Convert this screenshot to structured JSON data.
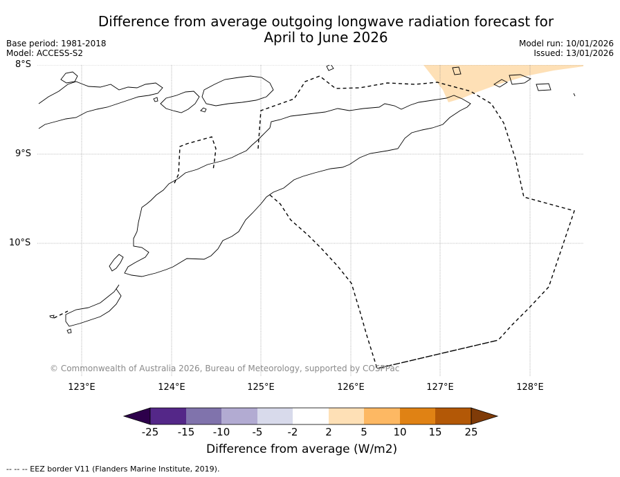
{
  "title": "Difference from average outgoing longwave radiation forecast for April to June 2026",
  "title_line1": "Difference from average outgoing longwave radiation forecast for",
  "title_line2": "April to June 2026",
  "base_period": "Base period: 1981-2018",
  "model": "Model: ACCESS-S2",
  "model_run": "Model run: 10/01/2026",
  "issued": "Issued: 13/01/2026",
  "map": {
    "lat_labels": [
      "8°S",
      "9°S",
      "10°S"
    ],
    "lon_labels": [
      "123°E",
      "124°E",
      "125°E",
      "126°E",
      "127°E",
      "128°E"
    ],
    "anomaly_region_category": "2 to 5",
    "anomaly_color": "#fee0b6"
  },
  "copyright": "© Commonwealth of Australia 2026, Bureau of Meteorology, supported by COSPPac",
  "colorbar": {
    "ticks": [
      "-25",
      "-15",
      "-10",
      "-5",
      "-2",
      "2",
      "5",
      "10",
      "15",
      "25"
    ],
    "colors": [
      "#2d004b",
      "#542788",
      "#8073ac",
      "#b2abd2",
      "#d8daeb",
      "#ffffff",
      "#fee0b6",
      "#fdb863",
      "#e08214",
      "#b35806",
      "#7f3b08"
    ],
    "title": "Difference from average (W/m2)"
  },
  "footer": "--  --  -- EEZ border V11 (Flanders Marine Institute, 2019)."
}
